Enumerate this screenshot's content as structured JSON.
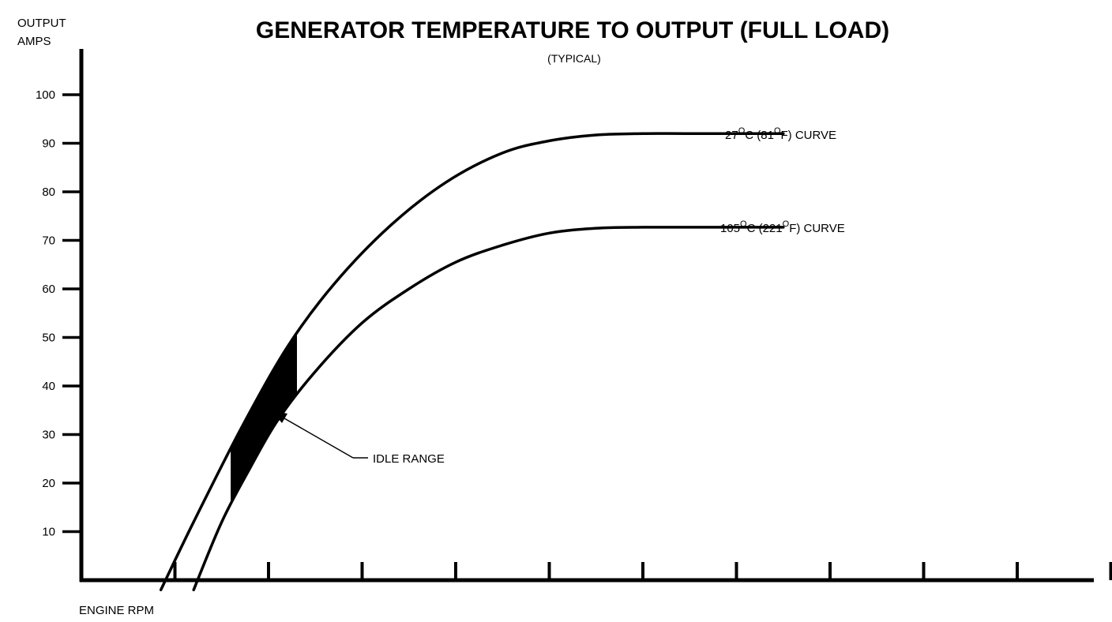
{
  "chart_data": {
    "type": "line",
    "title": "GENERATOR TEMPERATURE TO OUTPUT (FULL LOAD)",
    "subtitle": "(TYPICAL)",
    "ylabel_line1": "OUTPUT",
    "ylabel_line2": "AMPS",
    "xlabel": "ENGINE RPM",
    "ylim": [
      0,
      110
    ],
    "yticks": [
      10,
      20,
      30,
      40,
      50,
      60,
      70,
      80,
      90,
      100
    ],
    "ytick_labels": [
      "10",
      "20",
      "30",
      "40",
      "50",
      "60",
      "70",
      "80",
      "90",
      "100"
    ],
    "xlim": [
      0,
      11
    ],
    "xticks": [
      1,
      2,
      3,
      4,
      5,
      6,
      7,
      8,
      9,
      10,
      11
    ],
    "series": [
      {
        "name": "27°C (81°F) CURVE",
        "label_parts": [
          "27",
          "O",
          "C (81",
          "O",
          "F) CURVE"
        ],
        "x": [
          0.85,
          1.2,
          1.7,
          2.2,
          2.7,
          3.3,
          3.9,
          4.5,
          5.0,
          5.5,
          6.0,
          6.5,
          7.5
        ],
        "y": [
          -2,
          12,
          31,
          48,
          61,
          73,
          82,
          88,
          90.5,
          91.7,
          92,
          92,
          92
        ]
      },
      {
        "name": "105°C (221°F) CURVE",
        "label_parts": [
          "105",
          "O",
          "C (221",
          "O",
          "F) CURVE"
        ],
        "x": [
          1.2,
          1.5,
          1.8,
          2.1,
          2.5,
          3.0,
          3.5,
          4.0,
          4.5,
          5.0,
          5.5,
          6.0,
          6.5,
          7.5
        ],
        "y": [
          -2,
          12,
          23,
          33,
          43,
          53,
          60,
          65.5,
          69,
          71.5,
          72.5,
          72.7,
          72.7,
          72.7
        ]
      }
    ],
    "annotations": [
      {
        "text": "IDLE RANGE",
        "type": "shaded-region",
        "x_from": 1.6,
        "x_to": 2.3
      }
    ]
  }
}
